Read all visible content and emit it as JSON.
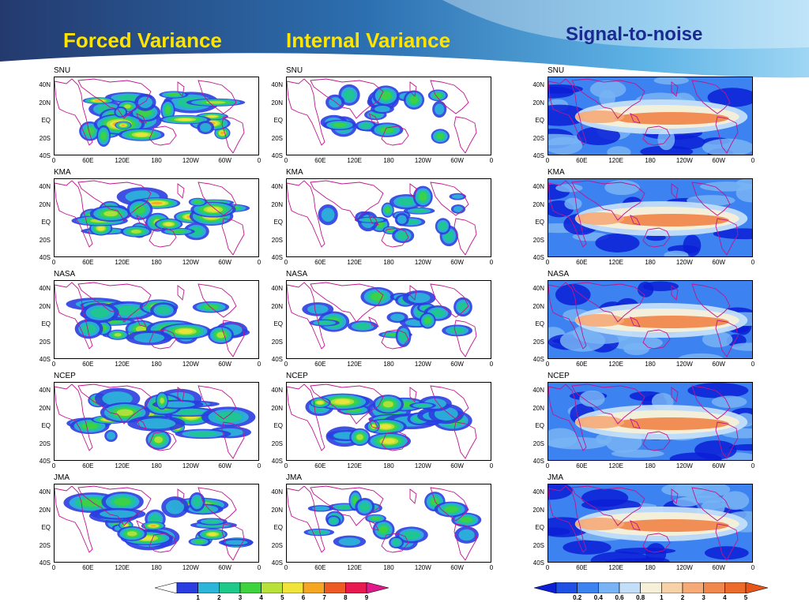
{
  "titles": {
    "forced": "Forced Variance",
    "internal": "Internal Variance",
    "snr": "Signal-to-noise"
  },
  "models": [
    "SNU",
    "KMA",
    "NASA",
    "NCEP",
    "JMA"
  ],
  "axes": {
    "y_ticks": [
      "40N",
      "20N",
      "EQ",
      "20S",
      "40S"
    ],
    "x_ticks": [
      "0",
      "60E",
      "120E",
      "180",
      "120W",
      "60W",
      "0"
    ]
  },
  "colorbar_variance": {
    "labels": [
      "1",
      "2",
      "3",
      "4",
      "5",
      "6",
      "7",
      "8",
      "9"
    ],
    "colors": [
      "#ffffff",
      "#2a3de0",
      "#2bb5d8",
      "#1fc98a",
      "#3fd23f",
      "#b8e23a",
      "#f0e43a",
      "#f5a623",
      "#ee5a24",
      "#e8194f",
      "#e0198c"
    ]
  },
  "colorbar_snr": {
    "labels": [
      "0.2",
      "0.4",
      "0.6",
      "0.8",
      "1",
      "2",
      "3",
      "4",
      "5"
    ],
    "colors": [
      "#0b1fd6",
      "#1e50e6",
      "#3c82f0",
      "#78b4f5",
      "#c3def8",
      "#f6f0d8",
      "#f7d2a8",
      "#f5aa78",
      "#f0884e",
      "#ec6a2a",
      "#e85518"
    ]
  }
}
